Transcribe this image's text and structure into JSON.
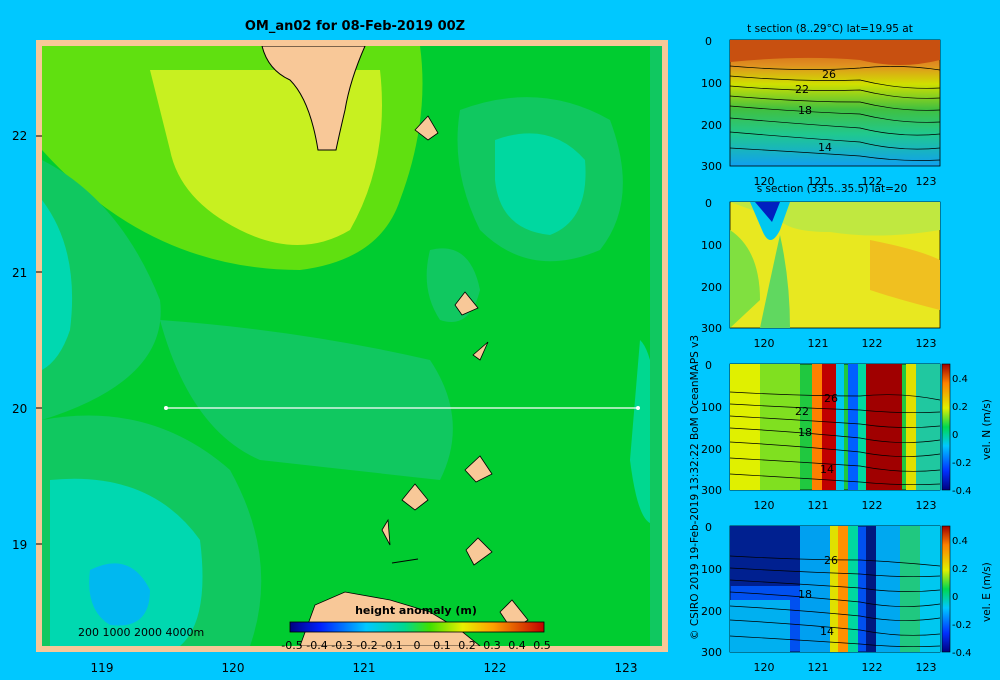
{
  "title": "OM_an02 for 08-Feb-2019 00Z",
  "side_credit": "© CSIRO 2019   19-Feb-2019 13:32:22 BoM OceanMAPS v3",
  "depth_legend": "200  1000  2000  4000m",
  "colorbar": {
    "title": "height anomaly (m)",
    "ticks": [
      "-0.5",
      "-0.4",
      "-0.3",
      "-0.2",
      "-0.1",
      "0",
      "0.1",
      "0.2",
      "0.3",
      "0.4",
      "0.5"
    ]
  },
  "colors": {
    "background": "#00c8ff",
    "land": "#f8c898",
    "frame": "#f8c898"
  },
  "chart_data": [
    {
      "type": "heatmap",
      "title": "OM_an02 for 08-Feb-2019 00Z",
      "x_ticks": [
        "119",
        "120",
        "121",
        "122",
        "123"
      ],
      "y_ticks": [
        "22",
        "21",
        "20",
        "19"
      ],
      "xlim": [
        118.5,
        123.5
      ],
      "ylim": [
        18.3,
        22.7
      ],
      "section_line": {
        "lat": 20,
        "lon_start": 119.5,
        "lon_end": 123.2
      },
      "colorbar": {
        "title": "height anomaly (m)",
        "range": [
          -0.5,
          0.5
        ]
      }
    },
    {
      "type": "heatmap",
      "title": "t section (8..29°C) lat=19.95 at",
      "x_ticks": [
        "120",
        "121",
        "122",
        "123"
      ],
      "y_ticks": [
        "0",
        "100",
        "200",
        "300"
      ],
      "contour_labels": [
        "26",
        "22",
        "18",
        "14"
      ]
    },
    {
      "type": "heatmap",
      "title": "s section (33.5..35.5) lat=20",
      "x_ticks": [
        "120",
        "121",
        "122",
        "123"
      ],
      "y_ticks": [
        "0",
        "100",
        "200",
        "300"
      ]
    },
    {
      "type": "heatmap",
      "title": "",
      "x_ticks": [
        "120",
        "121",
        "122",
        "123"
      ],
      "y_ticks": [
        "0",
        "100",
        "200",
        "300"
      ],
      "contour_labels": [
        "26",
        "22",
        "18",
        "14"
      ],
      "colorbar": {
        "label": "vel. N (m/s)",
        "ticks": [
          "0.4",
          "0.2",
          "0",
          "-0.2",
          "-0.4"
        ]
      }
    },
    {
      "type": "heatmap",
      "title": "",
      "x_ticks": [
        "120",
        "121",
        "122",
        "123"
      ],
      "y_ticks": [
        "0",
        "100",
        "200",
        "300"
      ],
      "contour_labels": [
        "26",
        "18",
        "14"
      ],
      "colorbar": {
        "label": "vel. E (m/s)",
        "ticks": [
          "0.4",
          "0.2",
          "0",
          "-0.2",
          "-0.4"
        ]
      }
    }
  ]
}
